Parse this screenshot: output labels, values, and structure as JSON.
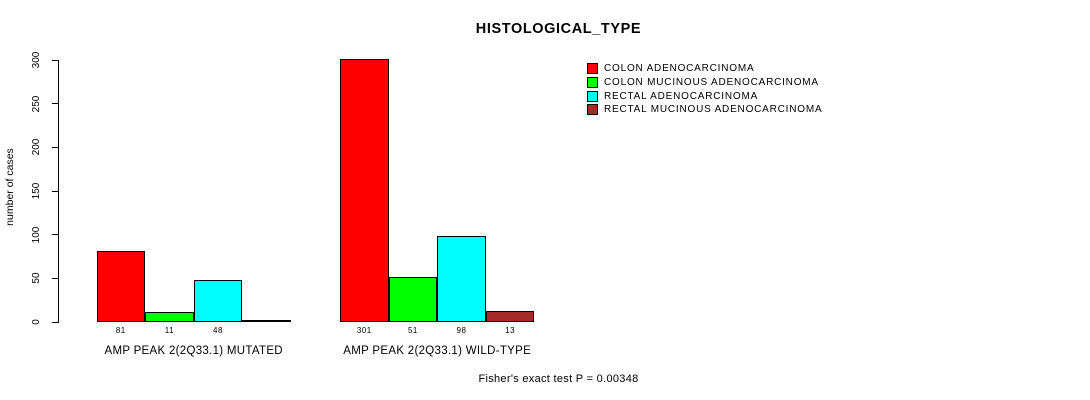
{
  "chart_data": {
    "type": "bar",
    "title": "HISTOLOGICAL_TYPE",
    "ylabel": "number of cases",
    "xlabel": "",
    "ylim": [
      0,
      300
    ],
    "yticks": [
      0,
      50,
      100,
      150,
      200,
      250,
      300
    ],
    "grid": false,
    "legend_position": "top-right",
    "categories": [
      "AMP PEAK 2(2Q33.1) MUTATED",
      "AMP PEAK 2(2Q33.1) WILD-TYPE"
    ],
    "series": [
      {
        "name": "COLON ADENOCARCINOMA",
        "color": "#FF0000",
        "values": [
          81,
          301
        ]
      },
      {
        "name": "COLON MUCINOUS ADENOCARCINOMA",
        "color": "#00FF00",
        "values": [
          11,
          51
        ]
      },
      {
        "name": "RECTAL ADENOCARCINOMA",
        "color": "#00FFFF",
        "values": [
          48,
          98
        ]
      },
      {
        "name": "RECTAL MUCINOUS ADENOCARCINOMA",
        "color": "#A52A2A",
        "values": [
          0,
          13
        ]
      }
    ],
    "bar_value_labels": [
      [
        "81",
        "11",
        "48",
        ""
      ],
      [
        "301",
        "51",
        "98",
        "13"
      ]
    ],
    "footnote": "Fisher's exact test P = 0.00348"
  },
  "colors": {
    "axis": "#000000",
    "background": "#FFFFFF",
    "text": "#000000"
  }
}
